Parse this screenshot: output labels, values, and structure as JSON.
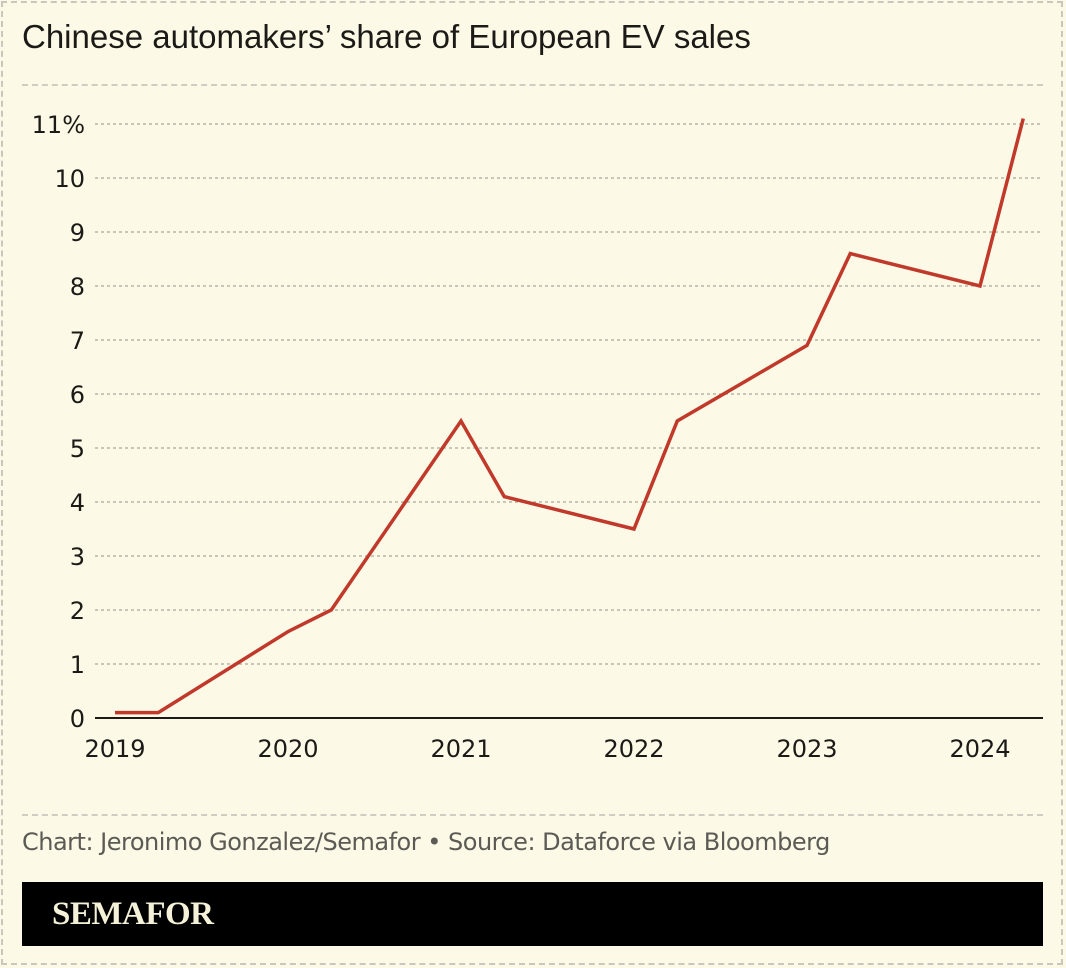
{
  "chart_data": {
    "type": "line",
    "title": "Chinese automakers’ share of European EV sales",
    "xlabel": "",
    "ylabel": "",
    "x_ticks": [
      "2019",
      "2020",
      "2021",
      "2022",
      "2023",
      "2024"
    ],
    "y_ticks": [
      "0",
      "1",
      "2",
      "3",
      "4",
      "5",
      "6",
      "7",
      "8",
      "9",
      "10",
      "11%"
    ],
    "ylim": [
      0,
      11
    ],
    "xlim": [
      2019,
      2024.25
    ],
    "grid": true,
    "line_color": "#c0392b",
    "series": [
      {
        "x": [
          2019.0,
          2019.25,
          2020.0,
          2020.25,
          2021.0,
          2021.25,
          2022.0,
          2022.25,
          2023.0,
          2023.25,
          2024.0,
          2024.25
        ],
        "y": [
          0.1,
          0.1,
          1.6,
          2.0,
          5.5,
          4.1,
          3.5,
          5.5,
          6.9,
          8.6,
          8.0,
          11.1
        ]
      }
    ]
  },
  "credit": "Chart: Jeronimo Gonzalez/Semafor • Source: Dataforce via Bloomberg",
  "logo": "SEMAFOR"
}
